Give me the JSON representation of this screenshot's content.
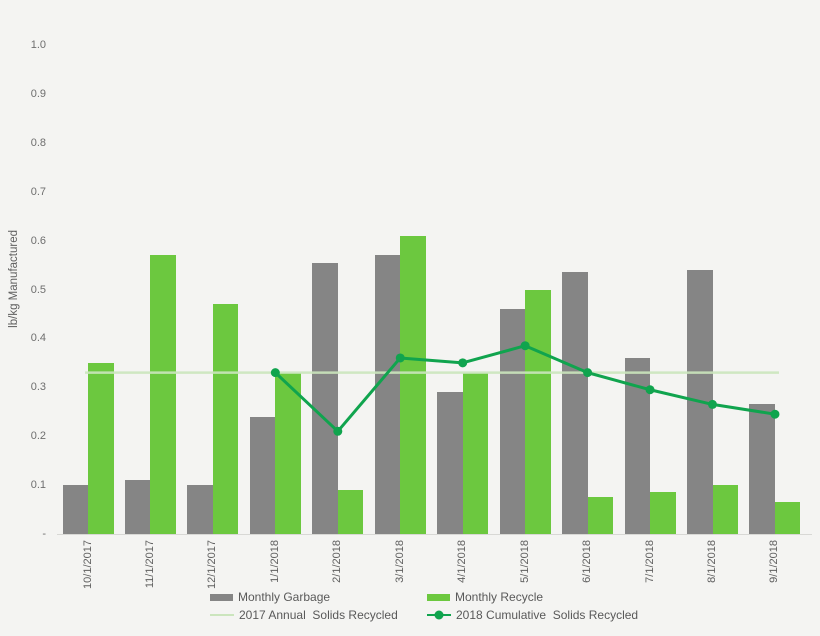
{
  "chart_data": {
    "type": "combo_bar_line",
    "title": "",
    "ylabel": "lb/kg Manufactured",
    "xlabel": "",
    "ylim": [
      0,
      1.0
    ],
    "grid": false,
    "legend_position": "bottom",
    "background_color": "#f4f4f2",
    "yticks": [
      {
        "value": 1.0,
        "label": "1.0"
      },
      {
        "value": 0.9,
        "label": "0.9"
      },
      {
        "value": 0.8,
        "label": "0.8"
      },
      {
        "value": 0.7,
        "label": "0.7"
      },
      {
        "value": 0.6,
        "label": "0.6"
      },
      {
        "value": 0.5,
        "label": "0.5"
      },
      {
        "value": 0.4,
        "label": "0.4"
      },
      {
        "value": 0.3,
        "label": "0.3"
      },
      {
        "value": 0.2,
        "label": "0.2"
      },
      {
        "value": 0.1,
        "label": "0.1"
      },
      {
        "value": 0.0,
        "label": "-"
      }
    ],
    "categories": [
      "10/1/2017",
      "11/1/2017",
      "12/1/2017",
      "1/1/2018",
      "2/1/2018",
      "3/1/2018",
      "4/1/2018",
      "5/1/2018",
      "6/1/2018",
      "7/1/2018",
      "8/1/2018",
      "9/1/2018"
    ],
    "series": [
      {
        "name": "Monthly Garbage",
        "kind": "bar",
        "color": "#858585",
        "values": [
          0.1,
          0.11,
          0.1,
          0.24,
          0.555,
          0.57,
          0.29,
          0.46,
          0.535,
          0.36,
          0.54,
          0.265
        ]
      },
      {
        "name": "Monthly Recycle",
        "kind": "bar",
        "color": "#6cc83f",
        "values": [
          0.35,
          0.57,
          0.47,
          0.33,
          0.09,
          0.61,
          0.33,
          0.5,
          0.075,
          0.085,
          0.1,
          0.065
        ]
      },
      {
        "name": "2017 Annual  Solids Recycled",
        "kind": "line",
        "color": "#cbe5bd",
        "marker": false,
        "constant_value": 0.33,
        "values": [
          0.33,
          0.33,
          0.33,
          0.33,
          0.33,
          0.33,
          0.33,
          0.33,
          0.33,
          0.33,
          0.33,
          0.33
        ]
      },
      {
        "name": "2018 Cumulative  Solids Recycled",
        "kind": "line",
        "color": "#10a44e",
        "marker": true,
        "values": [
          null,
          null,
          null,
          0.33,
          0.21,
          0.36,
          0.35,
          0.385,
          0.33,
          0.295,
          0.265,
          0.245
        ]
      }
    ]
  }
}
